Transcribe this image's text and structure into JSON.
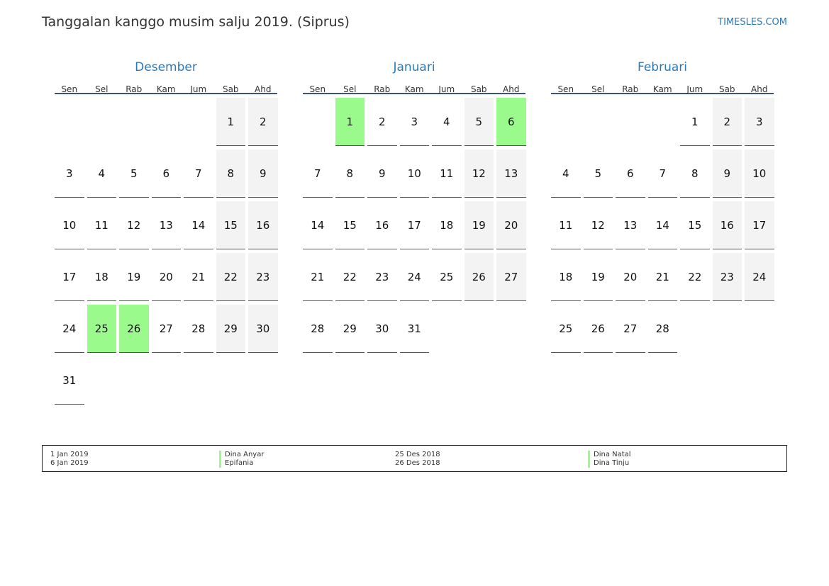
{
  "header": {
    "title": "Tanggalan kanggo musim salju 2019. (Siprus)",
    "site": "TIMESLES.COM"
  },
  "weekdays": [
    "Sen",
    "Sel",
    "Rab",
    "Kam",
    "Jum",
    "Sab",
    "Ahd"
  ],
  "colors": {
    "holiday": "#9afa8c",
    "weekend": "#f3f3f3",
    "accent": "#2a7ab8"
  },
  "months": [
    {
      "name": "Desember",
      "start_weekday": 5,
      "days": 31,
      "holidays": [
        25,
        26
      ]
    },
    {
      "name": "Januari",
      "start_weekday": 1,
      "days": 31,
      "holidays": [
        1,
        6
      ]
    },
    {
      "name": "Februari",
      "start_weekday": 4,
      "days": 28,
      "holidays": []
    }
  ],
  "legend": [
    {
      "date": "1 Jan 2019",
      "name": "Dina Anyar"
    },
    {
      "date": "6 Jan 2019",
      "name": "Epifania"
    },
    {
      "date": "25 Des 2018",
      "name": "Dina Natal"
    },
    {
      "date": "26 Des 2018",
      "name": "Dina Tinju"
    }
  ]
}
